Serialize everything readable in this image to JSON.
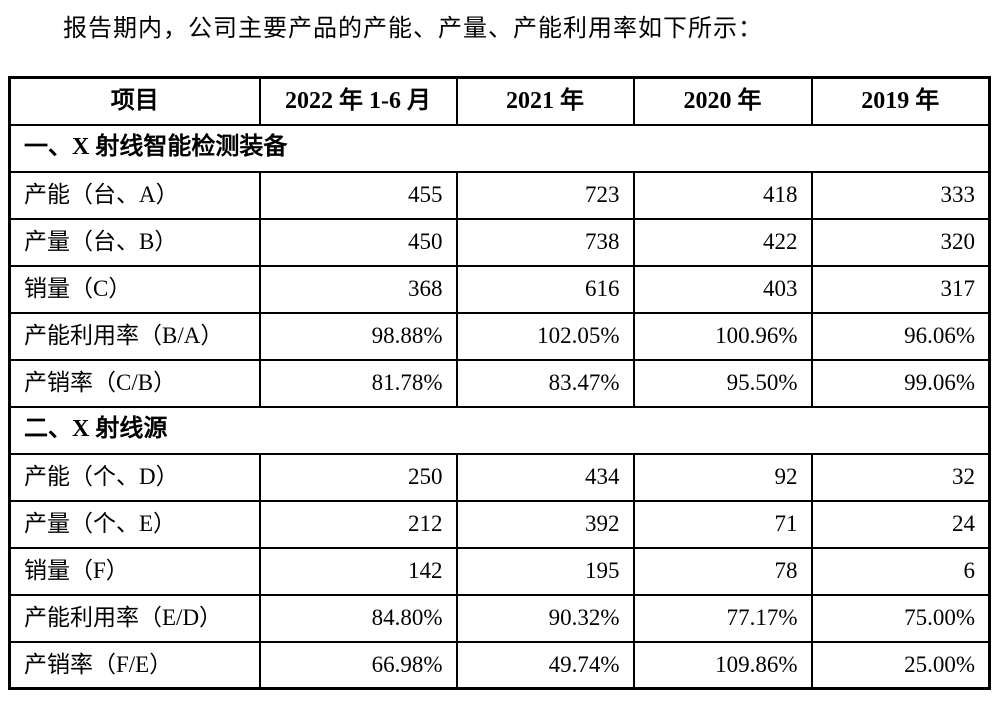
{
  "intro": "报告期内，公司主要产品的产能、产量、产能利用率如下所示：",
  "table": {
    "headers": [
      "项目",
      "2022 年 1-6 月",
      "2021 年",
      "2020 年",
      "2019 年"
    ],
    "sections": [
      {
        "title": "一、X 射线智能检测装备",
        "rows": [
          {
            "label": "产能（台、A）",
            "values": [
              "455",
              "723",
              "418",
              "333"
            ]
          },
          {
            "label": "产量（台、B）",
            "values": [
              "450",
              "738",
              "422",
              "320"
            ]
          },
          {
            "label": "销量（C）",
            "values": [
              "368",
              "616",
              "403",
              "317"
            ]
          },
          {
            "label": "产能利用率（B/A）",
            "values": [
              "98.88%",
              "102.05%",
              "100.96%",
              "96.06%"
            ]
          },
          {
            "label": "产销率（C/B）",
            "values": [
              "81.78%",
              "83.47%",
              "95.50%",
              "99.06%"
            ]
          }
        ]
      },
      {
        "title": "二、X 射线源",
        "rows": [
          {
            "label": "产能（个、D）",
            "values": [
              "250",
              "434",
              "92",
              "32"
            ]
          },
          {
            "label": "产量（个、E）",
            "values": [
              "212",
              "392",
              "71",
              "24"
            ]
          },
          {
            "label": "销量（F）",
            "values": [
              "142",
              "195",
              "78",
              "6"
            ]
          },
          {
            "label": "产能利用率（E/D）",
            "values": [
              "84.80%",
              "90.32%",
              "77.17%",
              "75.00%"
            ]
          },
          {
            "label": "产销率（F/E）",
            "values": [
              "66.98%",
              "49.74%",
              "109.86%",
              "25.00%"
            ]
          }
        ]
      }
    ]
  }
}
